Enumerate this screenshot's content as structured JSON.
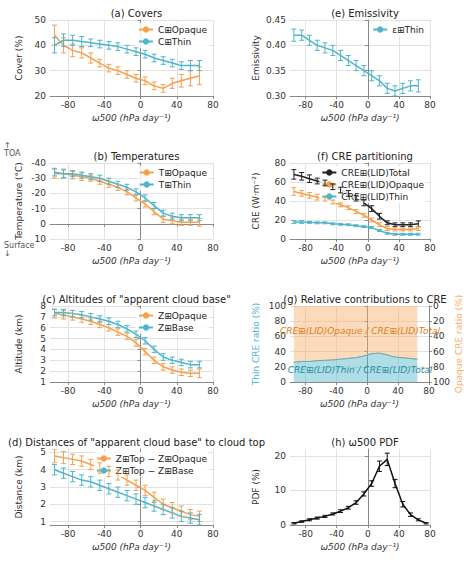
{
  "chart_data": [
    {
      "type": "line",
      "title": "(a) Covers",
      "x_label": "ω500 (hPa day⁻¹)",
      "y_label": "Cover (%)",
      "x": [
        -95,
        -85,
        -75,
        -65,
        -55,
        -45,
        -35,
        -25,
        -15,
        -5,
        5,
        15,
        25,
        35,
        45,
        55,
        65
      ],
      "xlim": [
        -100,
        80
      ],
      "xticks": [
        -80,
        -40,
        0,
        40,
        80
      ],
      "ylim": [
        20,
        50
      ],
      "yticks": [
        20,
        30,
        40,
        50
      ],
      "grid": true,
      "legend": "upper right",
      "series": [
        {
          "name": "C⊞Opaque",
          "color": "#f5a04e",
          "values": [
            44,
            40,
            38,
            37,
            35,
            33,
            31,
            30,
            28.5,
            27,
            26,
            24,
            23,
            25,
            26,
            27,
            28
          ],
          "errors": [
            4,
            3,
            2.5,
            2,
            2,
            1.5,
            1.5,
            1.5,
            1.5,
            1.5,
            1.5,
            1.5,
            1.5,
            2,
            2.5,
            3,
            3.5
          ]
        },
        {
          "name": "C⊞Thin",
          "color": "#4fb5c9",
          "values": [
            40,
            42,
            42,
            41.5,
            41,
            40.5,
            40,
            39.5,
            38.5,
            37.5,
            36.5,
            35,
            34,
            33,
            32,
            32,
            32
          ],
          "errors": [
            3,
            2.5,
            2,
            2,
            1.5,
            1.5,
            1.5,
            1.5,
            1.5,
            1.5,
            1.5,
            1.5,
            1.5,
            1.5,
            1.5,
            2,
            2
          ]
        }
      ]
    },
    {
      "type": "line",
      "title": "(b) Temperatures",
      "x_label": "ω500 (hPa day⁻¹)",
      "y_label": "Temperature (°C)",
      "x": [
        -95,
        -85,
        -75,
        -65,
        -55,
        -45,
        -35,
        -25,
        -15,
        -5,
        5,
        15,
        25,
        35,
        45,
        55,
        65
      ],
      "xlim": [
        -100,
        80
      ],
      "xticks": [
        -80,
        -40,
        0,
        40,
        80
      ],
      "ylim": [
        10,
        -40
      ],
      "yticks": [
        -40,
        -30,
        -20,
        -10,
        0,
        10
      ],
      "grid": true,
      "legend": "upper right",
      "annotations": [
        "↑\nTOA",
        "Surface\n↓"
      ],
      "series": [
        {
          "name": "T⊞Opaque",
          "color": "#f5a04e",
          "values": [
            -33,
            -33,
            -32,
            -31,
            -30,
            -28,
            -26,
            -24,
            -21,
            -17,
            -13,
            -8,
            -3,
            -2,
            -1,
            -1,
            -1
          ],
          "errors": [
            3,
            3,
            2.5,
            2.5,
            2,
            2,
            2,
            2,
            2,
            2,
            2,
            2,
            2,
            2,
            2,
            2,
            2.5
          ]
        },
        {
          "name": "T⊞Thin",
          "color": "#4fb5c9",
          "values": [
            -34,
            -33,
            -33,
            -32,
            -31,
            -30,
            -28,
            -26,
            -24,
            -21,
            -17,
            -12,
            -7,
            -5,
            -4,
            -4,
            -4
          ],
          "errors": [
            2.5,
            2.5,
            2,
            2,
            2,
            2,
            2,
            2,
            2,
            2,
            2,
            2,
            2,
            2,
            2,
            2,
            2
          ]
        }
      ]
    },
    {
      "type": "line",
      "title": "(c) Altitudes of \"apparent cloud base\"",
      "x_label": "ω500 (hPa day⁻¹)",
      "y_label": "Altitude (km)",
      "x": [
        -95,
        -85,
        -75,
        -65,
        -55,
        -45,
        -35,
        -25,
        -15,
        -5,
        5,
        15,
        25,
        35,
        45,
        55,
        65
      ],
      "xlim": [
        -100,
        80
      ],
      "xticks": [
        -80,
        -40,
        0,
        40,
        80
      ],
      "ylim": [
        1,
        8
      ],
      "yticks": [
        1,
        2,
        3,
        4,
        5,
        6,
        7,
        8
      ],
      "grid": true,
      "legend": "upper right",
      "series": [
        {
          "name": "Z⊞Opaque",
          "color": "#f5a04e",
          "values": [
            7.3,
            7.2,
            7.0,
            6.8,
            6.6,
            6.3,
            6.0,
            5.6,
            5.2,
            4.6,
            3.8,
            3.0,
            2.4,
            2.1,
            1.9,
            1.8,
            1.8
          ],
          "errors": [
            0.4,
            0.4,
            0.3,
            0.3,
            0.3,
            0.3,
            0.3,
            0.3,
            0.3,
            0.3,
            0.3,
            0.3,
            0.3,
            0.3,
            0.3,
            0.3,
            0.4
          ]
        },
        {
          "name": "Z⊞Base",
          "color": "#4fb5c9",
          "values": [
            7.4,
            7.4,
            7.3,
            7.2,
            7.0,
            6.8,
            6.6,
            6.3,
            5.9,
            5.4,
            4.8,
            4.0,
            3.3,
            3.0,
            2.8,
            2.6,
            2.6
          ],
          "errors": [
            0.3,
            0.3,
            0.3,
            0.3,
            0.3,
            0.3,
            0.3,
            0.3,
            0.3,
            0.3,
            0.3,
            0.3,
            0.3,
            0.3,
            0.3,
            0.3,
            0.3
          ]
        }
      ]
    },
    {
      "type": "line",
      "title": "(d) Distances of \"apparent cloud base\" to cloud top",
      "x_label": "ω500 (hPa day⁻¹)",
      "y_label": "Distance (km)",
      "x": [
        -95,
        -85,
        -75,
        -65,
        -55,
        -45,
        -35,
        -25,
        -15,
        -5,
        5,
        15,
        25,
        35,
        45,
        55,
        65
      ],
      "xlim": [
        -100,
        80
      ],
      "xticks": [
        -80,
        -40,
        0,
        40,
        80
      ],
      "ylim": [
        0.8,
        5.2
      ],
      "yticks": [
        1,
        2,
        3,
        4,
        5
      ],
      "grid": true,
      "legend": "upper right",
      "series": [
        {
          "name": "Z⊞Top − Z⊞Opaque",
          "color": "#f5a04e",
          "values": [
            4.8,
            4.7,
            4.6,
            4.5,
            4.3,
            4.1,
            3.9,
            3.7,
            3.4,
            3.1,
            2.8,
            2.4,
            2.0,
            1.8,
            1.6,
            1.4,
            1.3
          ],
          "errors": [
            0.4,
            0.35,
            0.3,
            0.3,
            0.3,
            0.3,
            0.3,
            0.3,
            0.3,
            0.3,
            0.3,
            0.3,
            0.3,
            0.3,
            0.3,
            0.3,
            0.3
          ]
        },
        {
          "name": "Z⊞Top − Z⊞Base",
          "color": "#4fb5c9",
          "values": [
            4.0,
            3.8,
            3.6,
            3.4,
            3.3,
            3.1,
            2.9,
            2.7,
            2.5,
            2.3,
            2.1,
            1.9,
            1.7,
            1.5,
            1.3,
            1.2,
            1.1
          ],
          "errors": [
            0.3,
            0.3,
            0.3,
            0.3,
            0.3,
            0.3,
            0.3,
            0.3,
            0.3,
            0.3,
            0.3,
            0.3,
            0.3,
            0.3,
            0.3,
            0.3,
            0.3
          ]
        }
      ]
    },
    {
      "type": "line",
      "title": "(e) Emissivity",
      "x_label": "ω500 (hPa day⁻¹)",
      "y_label": "Emissivity",
      "x": [
        -95,
        -85,
        -75,
        -65,
        -55,
        -45,
        -35,
        -25,
        -15,
        -5,
        5,
        15,
        25,
        35,
        45,
        55,
        65
      ],
      "xlim": [
        -100,
        80
      ],
      "xticks": [
        -80,
        -40,
        0,
        40,
        80
      ],
      "ylim": [
        0.3,
        0.45
      ],
      "yticks": [
        {
          "value": 0.3,
          "label": "0.30"
        },
        0.35,
        {
          "value": 0.4,
          "label": "0.40"
        },
        0.45
      ],
      "grid": true,
      "legend": "upper right",
      "series": [
        {
          "name": "ε⊞Thin",
          "color": "#4fb5c9",
          "values": [
            0.42,
            0.42,
            0.41,
            0.4,
            0.395,
            0.39,
            0.38,
            0.37,
            0.36,
            0.35,
            0.34,
            0.33,
            0.315,
            0.31,
            0.315,
            0.32,
            0.32
          ],
          "errors": [
            0.012,
            0.01,
            0.01,
            0.01,
            0.01,
            0.01,
            0.01,
            0.01,
            0.01,
            0.01,
            0.01,
            0.01,
            0.01,
            0.01,
            0.01,
            0.01,
            0.012
          ]
        }
      ]
    },
    {
      "type": "line",
      "title": "(f) CRE partitioning",
      "x_label": "ω500 (hPa day⁻¹)",
      "y_label": "CRE (W·m⁻²)",
      "x": [
        -95,
        -85,
        -75,
        -65,
        -55,
        -45,
        -35,
        -25,
        -15,
        -5,
        5,
        15,
        25,
        35,
        45,
        55,
        65
      ],
      "xlim": [
        -100,
        80
      ],
      "xticks": [
        -80,
        -40,
        0,
        40,
        80
      ],
      "ylim": [
        0,
        80
      ],
      "yticks": [
        0,
        20,
        40,
        60,
        80
      ],
      "grid": true,
      "legend": "upper right",
      "series": [
        {
          "name": "CRE⊞(LID)Total",
          "color": "#222222",
          "values": [
            68,
            66,
            63.5,
            61,
            59,
            55,
            51.5,
            48,
            43,
            38,
            32,
            24,
            17,
            15,
            15,
            15,
            16
          ],
          "errors": [
            5,
            4,
            4,
            3,
            3,
            3,
            3,
            3,
            3,
            3,
            3,
            3,
            2,
            2,
            2,
            2,
            3
          ]
        },
        {
          "name": "CRE⊞(LID)Opaque",
          "color": "#f5a04e",
          "values": [
            50,
            48,
            46,
            44,
            42,
            39,
            36,
            33,
            29,
            25,
            20,
            15,
            11,
            10,
            10,
            10,
            11
          ],
          "errors": [
            4,
            3,
            3,
            3,
            2,
            2,
            2,
            2,
            2,
            2,
            2,
            2,
            2,
            1.5,
            1.5,
            1.5,
            2
          ]
        },
        {
          "name": "CRE⊞(LID)Thin",
          "color": "#4fb5c9",
          "values": [
            18,
            18,
            17.5,
            17,
            17,
            16,
            15.5,
            15,
            14,
            13,
            12,
            9,
            6,
            5,
            5,
            5,
            5
          ],
          "errors": [
            1.5,
            1.5,
            1,
            1,
            1,
            1,
            1,
            1,
            1,
            1,
            1,
            1,
            1,
            1,
            1,
            1,
            1
          ]
        }
      ]
    },
    {
      "type": "area",
      "title": "(g) Relative contributions to CRE",
      "x_label": "ω500 (hPa day⁻¹)",
      "y_label": "Thin CRE ratio (%)",
      "y2_label": "Opaque CRE ratio (%)",
      "x": [
        -95,
        -85,
        -75,
        -65,
        -55,
        -45,
        -35,
        -25,
        -15,
        -5,
        5,
        15,
        25,
        35,
        45,
        55,
        65
      ],
      "xlim": [
        -100,
        80
      ],
      "xticks": [
        -80,
        -40,
        0,
        40,
        80
      ],
      "ylim": [
        0,
        100
      ],
      "yticks": [
        0,
        20,
        40,
        60,
        80,
        100
      ],
      "y2lim": [
        100,
        0
      ],
      "y2ticks": [
        0,
        20,
        40,
        60,
        80,
        100
      ],
      "grid": true,
      "annotations": [
        "CRE⊞(LID)Opaque / CRE⊞(LID)Total",
        "CRE⊞(LID)Thin / CRE⊞(LID)Total"
      ],
      "series": [
        {
          "name": "CRE⊞(LID)Opaque / CRE⊞(LID)Total",
          "color": "#f8b06a",
          "axis": "y2",
          "values": [
            74,
            73,
            73,
            72,
            71.5,
            71,
            70,
            69,
            68,
            66,
            63,
            62,
            64,
            67,
            68,
            69,
            70
          ]
        },
        {
          "name": "CRE⊞(LID)Thin / CRE⊞(LID)Total",
          "color": "#4fb5c9",
          "values": [
            26,
            27,
            27,
            28,
            28.5,
            29,
            30,
            31,
            32,
            34,
            37,
            38,
            36,
            33,
            32,
            31,
            30
          ]
        }
      ]
    },
    {
      "type": "line",
      "title": "(h) ω500 PDF",
      "x_label": "ω500 (hPa day⁻¹)",
      "y_label": "PDF (%)",
      "x": [
        -95,
        -85,
        -75,
        -65,
        -55,
        -45,
        -35,
        -25,
        -15,
        -5,
        5,
        15,
        25,
        35,
        45,
        55,
        65,
        75
      ],
      "xlim": [
        -100,
        80
      ],
      "xticks": [
        -80,
        -40,
        0,
        40,
        80
      ],
      "ylim": [
        0,
        22
      ],
      "yticks": [
        0,
        10,
        20
      ],
      "grid": true,
      "series": [
        {
          "name": "ω500 PDF",
          "color": "#111111",
          "values": [
            0.5,
            1,
            1.5,
            2,
            2.5,
            3.2,
            4,
            5,
            6.5,
            9,
            12,
            17,
            19,
            12,
            6,
            3,
            1.5,
            0.5
          ],
          "errors": [
            0.2,
            0.2,
            0.3,
            0.3,
            0.3,
            0.3,
            0.4,
            0.4,
            0.5,
            0.6,
            0.8,
            1.5,
            1.8,
            1.2,
            0.8,
            0.5,
            0.3,
            0.2
          ]
        }
      ]
    }
  ]
}
